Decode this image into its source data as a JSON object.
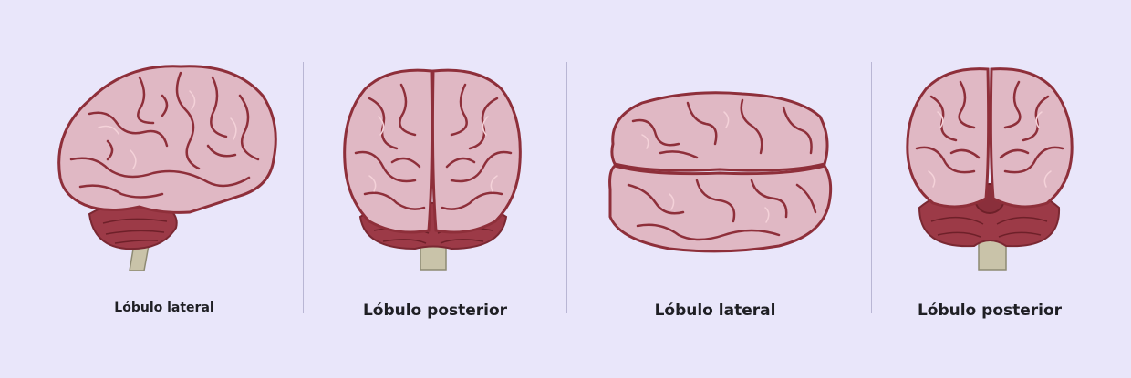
{
  "colors": {
    "background": "#e9e6fa",
    "brain_fill": "#e0b8c4",
    "brain_outline": "#8e2f3a",
    "brain_highlight": "#f4d2d9",
    "cerebellum": "#9c3a47",
    "brainstem": "#c9c3a9",
    "divider": "#b9b6d4"
  },
  "panels": [
    {
      "caption": "Lóbulo lateral",
      "icon": "brain-side-view-icon"
    },
    {
      "caption": "Lóbulo posterior",
      "icon": "brain-back-view-icon"
    },
    {
      "caption": "Lóbulo lateral",
      "icon": "brain-top-view-icon"
    },
    {
      "caption": "Lóbulo posterior",
      "icon": "brain-back-view-icon"
    }
  ]
}
